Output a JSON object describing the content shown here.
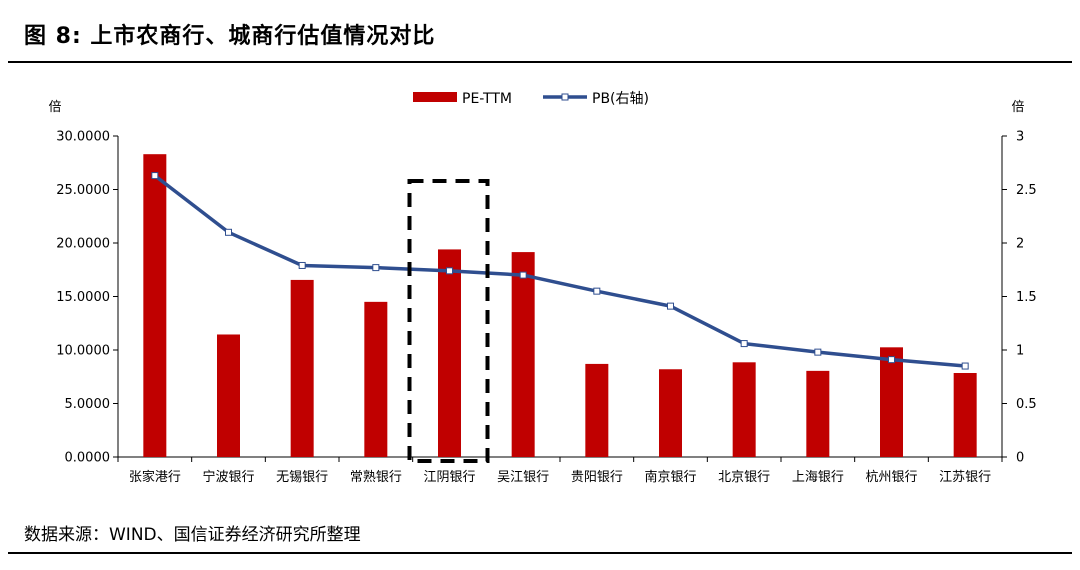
{
  "figure": {
    "title": "图 8: 上市农商行、城商行估值情况对比",
    "source": "数据来源：WIND、国信证券经济研究所整理"
  },
  "colors": {
    "bar": "#C00000",
    "line": "#2F4E8F",
    "highlight": "#000000"
  },
  "chart_data": {
    "type": "bar",
    "categories": [
      "张家港行",
      "宁波银行",
      "无锡银行",
      "常熟银行",
      "江阴银行",
      "吴江银行",
      "贵阳银行",
      "南京银行",
      "北京银行",
      "上海银行",
      "杭州银行",
      "江苏银行"
    ],
    "series": [
      {
        "name": "PE-TTM",
        "type": "bar",
        "axis": "left",
        "values": [
          28.3,
          11.45,
          16.55,
          14.5,
          19.4,
          19.15,
          8.7,
          8.2,
          8.85,
          8.05,
          10.25,
          7.85
        ]
      },
      {
        "name": "PB(右轴)",
        "type": "line",
        "axis": "right",
        "values": [
          2.63,
          2.1,
          1.79,
          1.77,
          1.74,
          1.7,
          1.55,
          1.41,
          1.06,
          0.98,
          0.91,
          0.85
        ]
      }
    ],
    "left_axis": {
      "label": "倍",
      "ylim": [
        0,
        30
      ],
      "ticks": [
        "0.0000",
        "5.0000",
        "10.0000",
        "15.0000",
        "20.0000",
        "25.0000",
        "30.0000"
      ]
    },
    "right_axis": {
      "label": "倍",
      "ylim": [
        0,
        3
      ],
      "ticks": [
        "0",
        "0.5",
        "1",
        "1.5",
        "2",
        "2.5",
        "3"
      ]
    },
    "highlight_category": "江阴银行",
    "legend_position": "top-center",
    "grid": false
  }
}
